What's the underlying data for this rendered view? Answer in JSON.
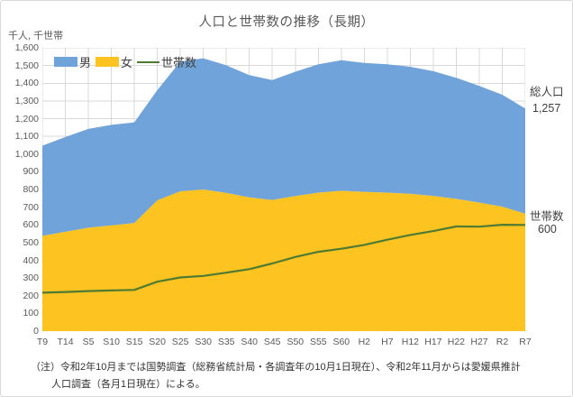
{
  "title": "人口と世帯数の推移（長期）",
  "unit_label": "千人, 千世帯",
  "legend": {
    "male": "男",
    "female": "女",
    "households": "世帯数"
  },
  "annotations": {
    "total_label": "総人口",
    "total_value": "1,257",
    "households_label": "世帯数",
    "households_value": "600"
  },
  "footnote": {
    "line1": "（注）令和2年10月までは国勢調査（総務省統計局・各調査年の10月1日現在）、令和2年11月からは愛媛県推計",
    "line2": "人口調査（各月1日現在）による。"
  },
  "colors": {
    "male_area": "#6FA3D9",
    "female_area": "#FDC321",
    "household_line": "#4E7B31",
    "grid": "#D9D9D9",
    "axis_text": "#595959",
    "annotation_text": "#404040",
    "background": "#FFFFFF",
    "border": "#D9D9D9"
  },
  "chart_data": {
    "type": "area",
    "stacked": true,
    "title": "人口と世帯数の推移（長期）",
    "ylabel": "千人, 千世帯",
    "ylim": [
      0,
      1600
    ],
    "ytick_step": 100,
    "grid": true,
    "legend_position": "top-left-inside",
    "categories": [
      "T9",
      "T14",
      "S5",
      "S10",
      "S15",
      "S20",
      "S25",
      "S30",
      "S35",
      "S40",
      "S45",
      "S50",
      "S55",
      "S60",
      "H2",
      "H7",
      "H12",
      "H17",
      "H22",
      "H27",
      "R2",
      "R7"
    ],
    "series": [
      {
        "name": "男",
        "type": "area",
        "color": "#6FA3D9",
        "values": [
          509,
          535,
          558,
          568,
          568,
          622,
          732,
          741,
          720,
          691,
          677,
          702,
          725,
          737,
          728,
          725,
          717,
          704,
          684,
          659,
          632,
          594
        ]
      },
      {
        "name": "女",
        "type": "area",
        "color": "#FDC321",
        "values": [
          538,
          561,
          584,
          597,
          611,
          739,
          790,
          800,
          781,
          755,
          741,
          763,
          782,
          793,
          787,
          782,
          776,
          764,
          747,
          726,
          703,
          663
        ]
      },
      {
        "name": "世帯数",
        "type": "line",
        "color": "#4E7B31",
        "values": [
          217,
          221,
          226,
          230,
          233,
          279,
          303,
          312,
          330,
          350,
          382,
          419,
          448,
          465,
          487,
          516,
          543,
          565,
          591,
          590,
          601,
          600
        ]
      }
    ],
    "stack_bottom_first": [
      "女",
      "男"
    ],
    "totals": [
      1047,
      1096,
      1142,
      1165,
      1179,
      1361,
      1522,
      1541,
      1501,
      1446,
      1418,
      1465,
      1507,
      1530,
      1515,
      1507,
      1493,
      1468,
      1431,
      1385,
      1335,
      1257
    ]
  }
}
